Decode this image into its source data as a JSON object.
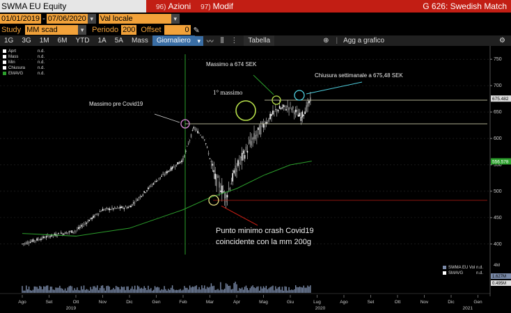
{
  "header": {
    "ticker": "SWMA EU Equity",
    "menu_azioni_num": "96)",
    "menu_azioni": "Azioni",
    "menu_modif_num": "97)",
    "menu_modif": "Modif",
    "page_title": "G 626: Swedish Match"
  },
  "range": {
    "start": "01/01/2019",
    "dash": "-",
    "end": "07/06/2020",
    "currency": "Val locale"
  },
  "study": {
    "study_label": "Study",
    "study_value": "MM scad",
    "period_label": "Periodo",
    "period_value": "200",
    "offset_label": "Offset",
    "offset_value": "0"
  },
  "toolbar": {
    "tabs": [
      "1G",
      "3G",
      "1M",
      "6M",
      "YTD",
      "1A",
      "5A",
      "Mass"
    ],
    "active_tab": "Giornaliero",
    "table_label": "Tabella",
    "add_label": "Agg a grafico"
  },
  "legend": [
    {
      "label": "Aprt",
      "value": "n.d.",
      "color": "#ffffff"
    },
    {
      "label": "Mass",
      "value": "n.d.",
      "color": "#ffffff"
    },
    {
      "label": "Min",
      "value": "n.d.",
      "color": "#ffffff"
    },
    {
      "label": "Chiusura",
      "value": "n.d.",
      "color": "#ffffff"
    },
    {
      "label": "EMAVG",
      "value": "n.d.",
      "color": "#2ca02c"
    }
  ],
  "volume_legend": [
    {
      "label": "SWMA EU Vol",
      "value": "n.d.",
      "color": "#7a8aa8"
    },
    {
      "label": "SMAVG",
      "value": "n.d.",
      "color": "#ffffff"
    }
  ],
  "annotations": {
    "pre_covid_high": "Massimo pre Covid19",
    "high_674": "Massimo a 674 SEK",
    "first_high": "1° massimo",
    "weekly_close": "Chiusura settimanale a 675,48 SEK",
    "covid_low": "Punto minimo crash Covid19 coincidente con la mm 200g"
  },
  "chart_data": {
    "type": "candlestick",
    "y_ticks": [
      "750",
      "700",
      "650",
      "600",
      "550",
      "500",
      "450",
      "400"
    ],
    "ylim": [
      380,
      770
    ],
    "price_tag": "675.482",
    "ma_tag": "556.578",
    "volume_ticks": [
      "4M",
      "2M"
    ],
    "volume_tags": [
      "1.627M",
      "0.495M"
    ],
    "month_labels": [
      "Ago",
      "Set",
      "Ott",
      "Nov",
      "Dic",
      "Gen",
      "Feb",
      "Mar",
      "Apr",
      "Mag",
      "Giu",
      "Lug",
      "Ago",
      "Set",
      "Ott",
      "Nov",
      "Dic",
      "Gen"
    ],
    "year_labels": [
      "2019",
      "2020",
      "2021"
    ],
    "price_path_months": [
      0,
      1,
      2,
      3,
      4,
      5,
      6,
      6.4,
      6.8,
      7.2,
      7.6,
      8,
      8.5,
      9,
      9.5,
      10,
      10.4,
      10.8
    ],
    "price_path_values": [
      400,
      415,
      425,
      465,
      470,
      520,
      560,
      620,
      600,
      525,
      490,
      545,
      590,
      625,
      655,
      660,
      640,
      675
    ],
    "ema_months": [
      0,
      2,
      4,
      6,
      7,
      8,
      9,
      10,
      10.8
    ],
    "ema_values": [
      420,
      415,
      430,
      465,
      488,
      505,
      530,
      550,
      557
    ]
  }
}
